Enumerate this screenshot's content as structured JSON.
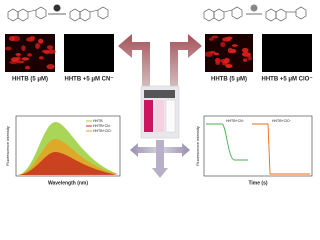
{
  "left_panel": {
    "image_labels": [
      "HHTB (5 μM)",
      "HHTB +5 μM CN⁻"
    ]
  },
  "right_panel": {
    "image_labels": [
      "HHTB (5 μM)",
      "HHTB +5 μM ClO⁻"
    ]
  },
  "spectra_chart": {
    "x_label": "Wavelength (nm)",
    "y_label": "Fluorescence intensity",
    "legend": [
      "HHTB",
      "HHTB+CN⁻",
      "HHTB+ClO⁻"
    ]
  },
  "time_chart": {
    "x_label": "Time (s)",
    "y_label": "Fluorescence intensity",
    "labels": [
      "HHTB+CN⁻",
      "HHTB+ClO⁻"
    ]
  }
}
